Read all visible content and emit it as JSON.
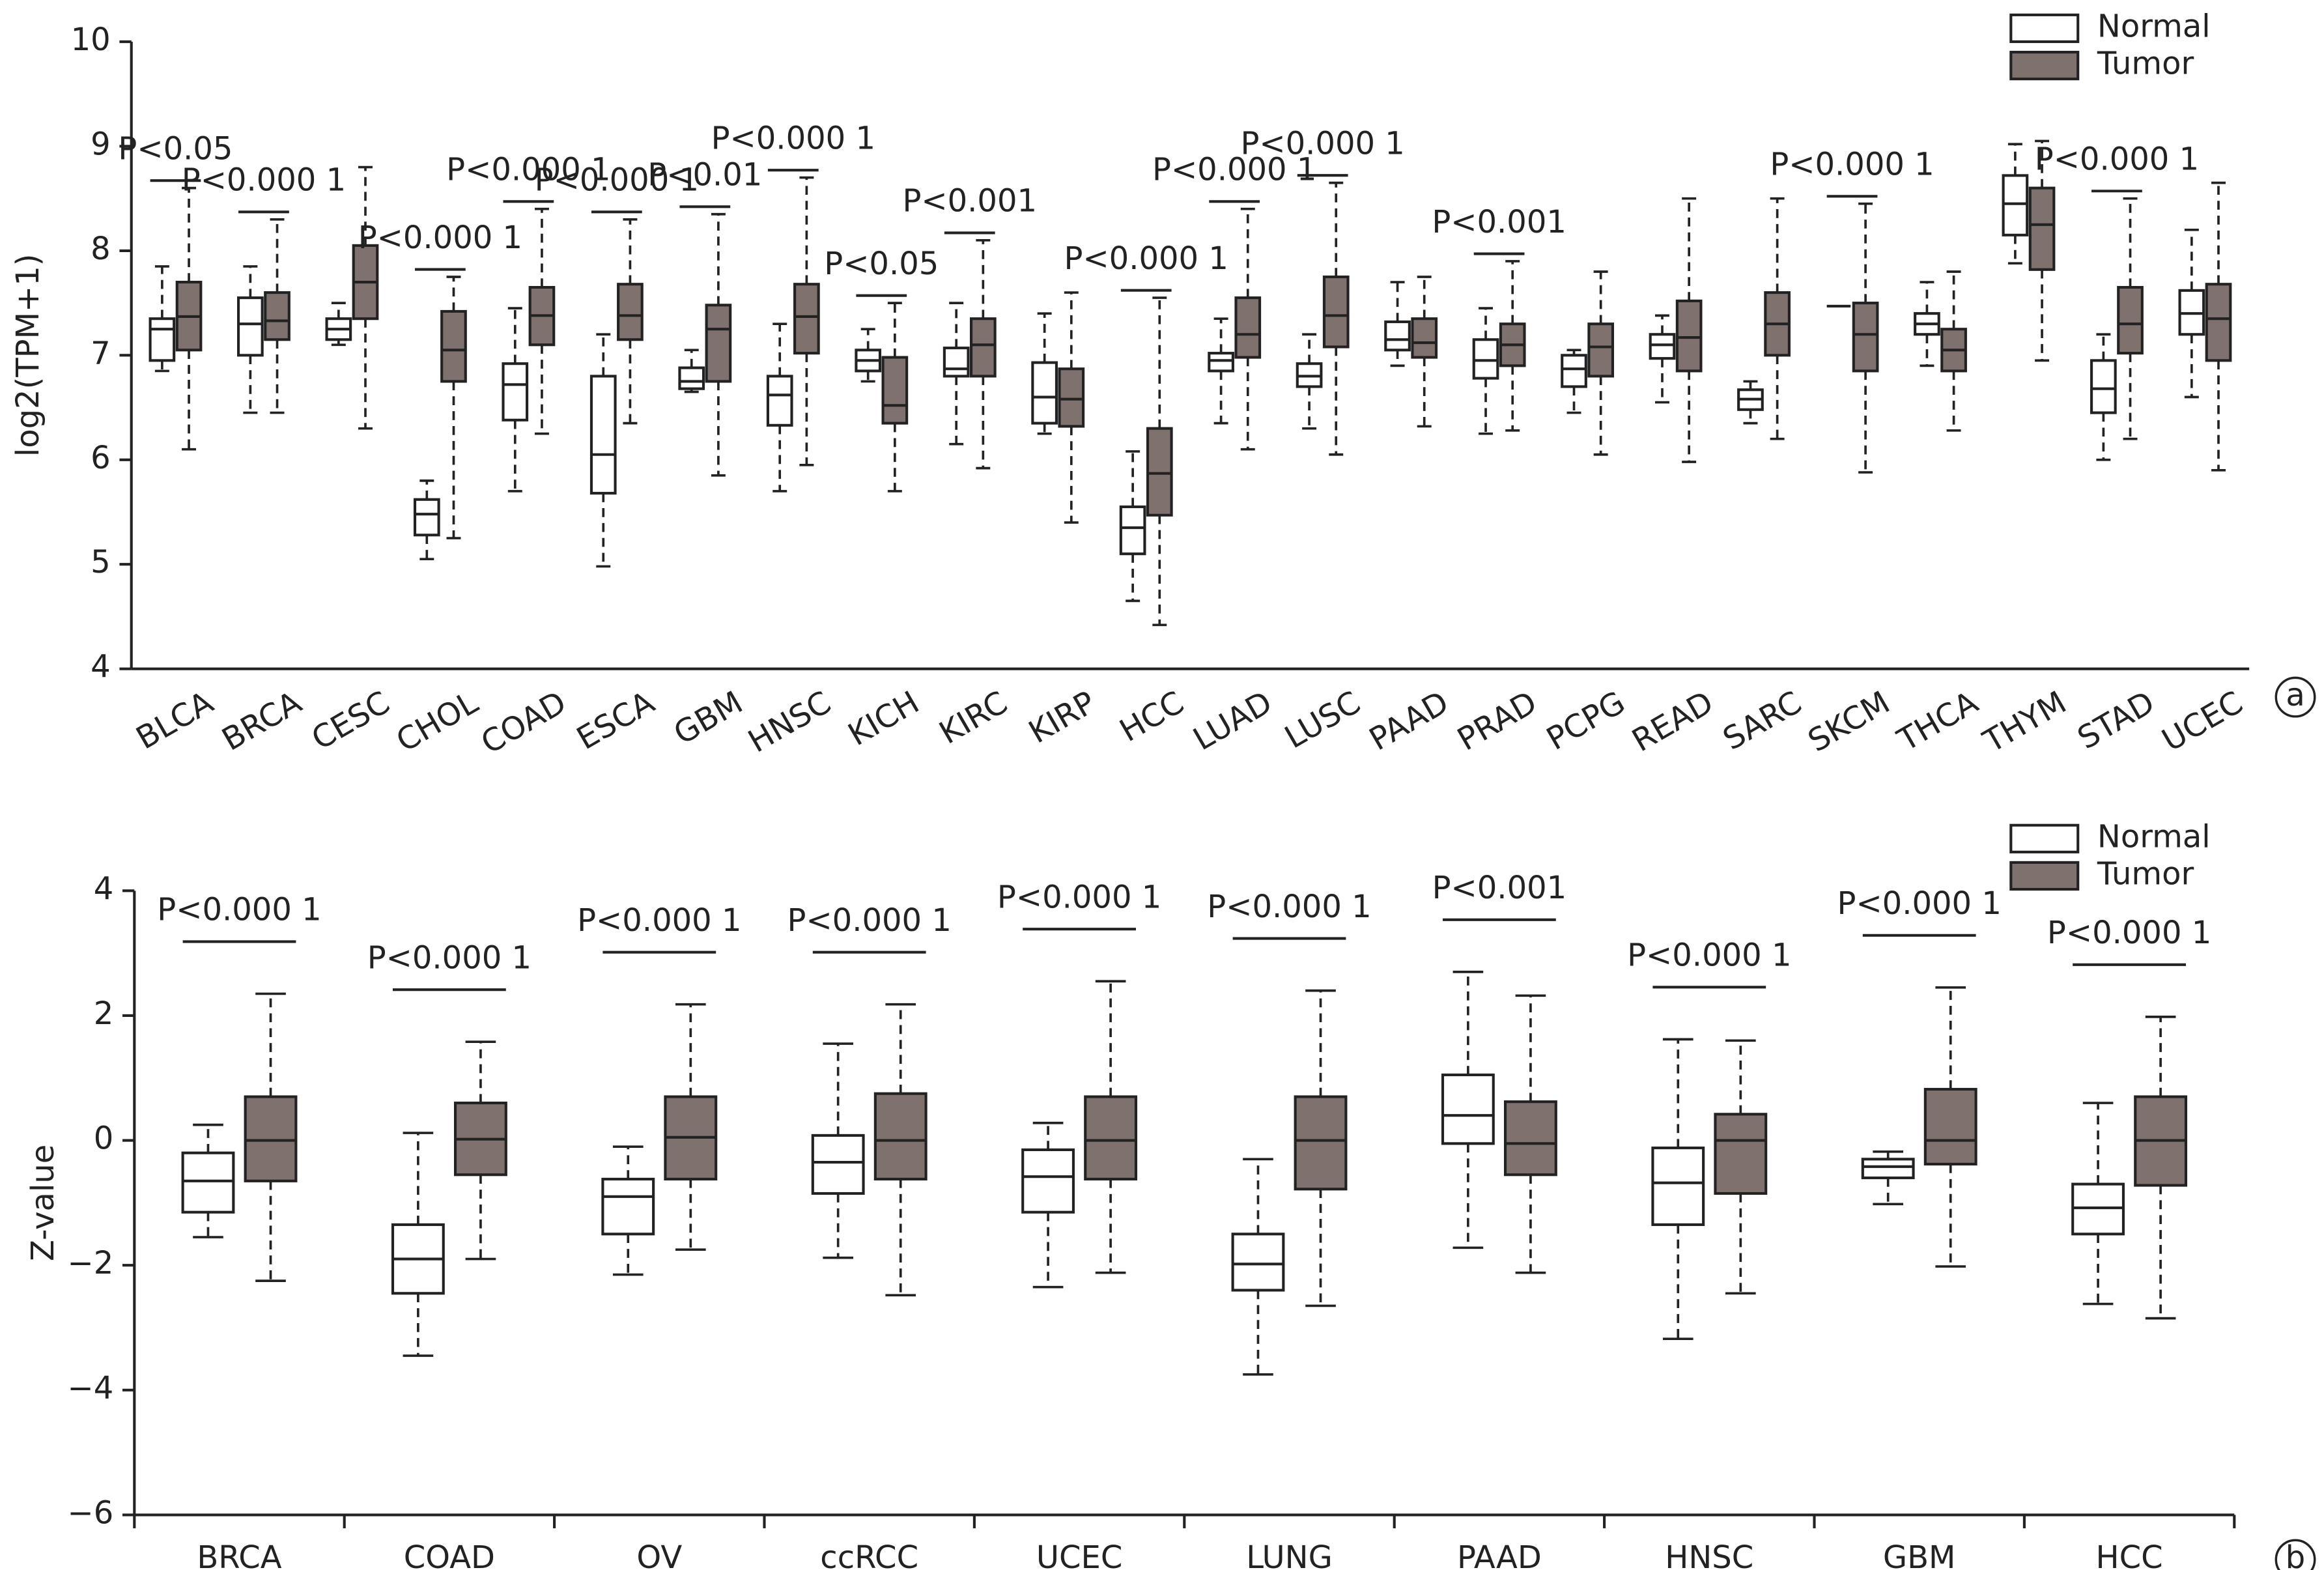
{
  "chart_data": [
    {
      "type": "box",
      "y_label": "log2(TPM+1)",
      "panel_label": "a",
      "legend": "upper right",
      "ylim": [
        4,
        10
      ],
      "yticks": [
        4,
        5,
        6,
        7,
        8,
        9,
        10
      ],
      "categories": [
        "BLCA",
        "BRCA",
        "CESC",
        "CHOL",
        "COAD",
        "ESCA",
        "GBM",
        "HNSC",
        "KICH",
        "KIRC",
        "KIRP",
        "HCC",
        "LUAD",
        "LUSC",
        "PAAD",
        "PRAD",
        "PCPG",
        "READ",
        "SARC",
        "SKCM",
        "THCA",
        "THYM",
        "STAD",
        "UCEC"
      ],
      "series": [
        {
          "name": "Normal",
          "color": "#ffffff",
          "min": [
            6.85,
            6.45,
            7.1,
            5.05,
            5.7,
            4.98,
            6.65,
            5.7,
            6.75,
            6.15,
            6.25,
            4.65,
            6.35,
            6.3,
            6.9,
            6.25,
            6.45,
            6.55,
            6.35,
            7.47,
            6.9,
            7.88,
            6.0,
            6.6
          ],
          "q1": [
            6.95,
            7.0,
            7.15,
            5.28,
            6.38,
            5.68,
            6.68,
            6.33,
            6.85,
            6.8,
            6.35,
            5.1,
            6.85,
            6.7,
            7.05,
            6.78,
            6.7,
            6.97,
            6.48,
            7.47,
            7.2,
            8.15,
            6.45,
            7.2
          ],
          "median": [
            7.25,
            7.3,
            7.25,
            5.48,
            6.72,
            6.05,
            6.75,
            6.62,
            6.95,
            6.87,
            6.6,
            5.35,
            6.95,
            6.8,
            7.15,
            6.95,
            6.87,
            7.1,
            6.58,
            7.47,
            7.3,
            8.45,
            6.68,
            7.4
          ],
          "q3": [
            7.35,
            7.55,
            7.35,
            5.62,
            6.92,
            6.8,
            6.88,
            6.8,
            7.05,
            7.07,
            6.93,
            5.55,
            7.02,
            6.92,
            7.32,
            7.15,
            7.0,
            7.2,
            6.67,
            7.47,
            7.4,
            8.72,
            6.95,
            7.62
          ],
          "max": [
            7.85,
            7.85,
            7.5,
            5.8,
            7.45,
            7.2,
            7.05,
            7.3,
            7.25,
            7.5,
            7.4,
            6.08,
            7.35,
            7.2,
            7.7,
            7.45,
            7.05,
            7.38,
            6.75,
            7.47,
            7.7,
            9.02,
            7.2,
            8.2
          ]
        },
        {
          "name": "Tumor",
          "color": "#7f716e",
          "min": [
            6.1,
            6.45,
            6.3,
            5.25,
            6.25,
            6.35,
            5.85,
            5.95,
            5.7,
            5.92,
            5.4,
            4.42,
            6.1,
            6.05,
            6.32,
            6.28,
            6.05,
            5.98,
            6.2,
            5.88,
            6.28,
            6.95,
            6.2,
            5.9
          ],
          "q1": [
            7.05,
            7.15,
            7.35,
            6.75,
            7.1,
            7.15,
            6.75,
            7.02,
            6.35,
            6.8,
            6.32,
            5.47,
            6.98,
            7.08,
            6.98,
            6.9,
            6.8,
            6.85,
            7.0,
            6.85,
            6.85,
            7.82,
            7.02,
            6.95
          ],
          "median": [
            7.37,
            7.33,
            7.7,
            7.05,
            7.38,
            7.38,
            7.25,
            7.37,
            6.52,
            7.1,
            6.58,
            5.87,
            7.2,
            7.38,
            7.12,
            7.1,
            7.08,
            7.17,
            7.3,
            7.2,
            7.05,
            8.25,
            7.3,
            7.35
          ],
          "q3": [
            7.7,
            7.6,
            8.05,
            7.42,
            7.65,
            7.68,
            7.48,
            7.68,
            6.98,
            7.35,
            6.87,
            6.3,
            7.55,
            7.75,
            7.35,
            7.3,
            7.3,
            7.52,
            7.6,
            7.5,
            7.25,
            8.6,
            7.65,
            7.68
          ],
          "max": [
            8.6,
            8.3,
            8.8,
            7.75,
            8.4,
            8.3,
            8.35,
            8.7,
            7.5,
            8.1,
            7.6,
            7.55,
            8.4,
            8.65,
            7.75,
            7.9,
            7.8,
            8.5,
            8.5,
            8.45,
            7.8,
            9.05,
            8.5,
            8.65
          ]
        }
      ],
      "annotations": [
        "P<0.05",
        "P<0.000 1",
        null,
        "P<0.000 1",
        "P<0.000 1",
        "P<0.000 1",
        "P<0.01",
        "P<0.000 1",
        "P<0.05",
        "P<0.001",
        null,
        "P<0.000 1",
        "P<0.000 1",
        "P<0.000 1",
        null,
        "P<0.001",
        null,
        null,
        null,
        "P<0.000 1",
        null,
        null,
        "P<0.000 1",
        null
      ]
    },
    {
      "type": "box",
      "y_label": "Z-value",
      "panel_label": "b",
      "legend": "upper right",
      "ylim": [
        -6,
        4
      ],
      "yticks": [
        {
          "value": -6,
          "label": "−6"
        },
        {
          "value": -4,
          "label": "−4"
        },
        {
          "value": -2,
          "label": "−2"
        },
        0,
        2,
        4
      ],
      "categories": [
        "BRCA",
        "COAD",
        "OV",
        "ccRCC",
        "UCEC",
        "LUNG",
        "PAAD",
        "HNSC",
        "GBM",
        "HCC"
      ],
      "series": [
        {
          "name": "Normal",
          "color": "#ffffff",
          "min": [
            -1.55,
            -3.45,
            -2.15,
            -1.88,
            -2.35,
            -3.75,
            -1.72,
            -3.18,
            -1.02,
            -2.62
          ],
          "q1": [
            -1.15,
            -2.45,
            -1.5,
            -0.85,
            -1.15,
            -2.4,
            -0.05,
            -1.35,
            -0.6,
            -1.5
          ],
          "median": [
            -0.65,
            -1.9,
            -0.9,
            -0.35,
            -0.58,
            -1.98,
            0.4,
            -0.68,
            -0.42,
            -1.08
          ],
          "q3": [
            -0.2,
            -1.35,
            -0.62,
            0.08,
            -0.15,
            -1.5,
            1.05,
            -0.12,
            -0.3,
            -0.7
          ],
          "max": [
            0.25,
            0.12,
            -0.1,
            1.55,
            0.28,
            -0.3,
            2.7,
            1.62,
            -0.18,
            0.6
          ]
        },
        {
          "name": "Tumor",
          "color": "#7f716e",
          "min": [
            -2.25,
            -1.9,
            -1.75,
            -2.48,
            -2.12,
            -2.65,
            -2.12,
            -2.45,
            -2.02,
            -2.85
          ],
          "q1": [
            -0.65,
            -0.55,
            -0.62,
            -0.62,
            -0.62,
            -0.78,
            -0.55,
            -0.85,
            -0.38,
            -0.72
          ],
          "median": [
            0,
            0.02,
            0.05,
            0,
            0,
            0,
            -0.05,
            0,
            0,
            0
          ],
          "q3": [
            0.7,
            0.6,
            0.7,
            0.75,
            0.7,
            0.7,
            0.62,
            0.42,
            0.82,
            0.7
          ],
          "max": [
            2.35,
            1.58,
            2.18,
            2.18,
            2.55,
            2.4,
            2.32,
            1.6,
            2.45,
            1.98
          ]
        }
      ],
      "annotations": [
        "P<0.000 1",
        "P<0.000 1",
        "P<0.000 1",
        "P<0.000 1",
        "P<0.000 1",
        "P<0.000 1",
        "P<0.001",
        "P<0.000 1",
        "P<0.000 1",
        "P<0.000 1"
      ]
    }
  ]
}
